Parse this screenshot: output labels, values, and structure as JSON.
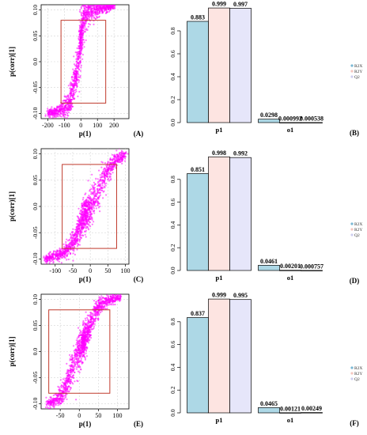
{
  "colors": {
    "r2x": "#add8e6",
    "r2y": "#fde4e1",
    "q2": "#e6e6fa",
    "point": "#ff00ff",
    "box": "#c0392b",
    "grid": "#d4d4d4"
  },
  "chart_data": [
    {
      "type": "scatter",
      "panel_label": "(A)",
      "xlabel": "p(1)",
      "ylabel": "p(corr)[1]",
      "xlim": [
        -240,
        290
      ],
      "ylim": [
        -0.11,
        0.11
      ],
      "xticks": [
        -200,
        -100,
        0,
        100,
        200
      ],
      "yticks": [
        -0.1,
        -0.05,
        0.0,
        0.05,
        0.1
      ],
      "xtick_labels": [
        "-200",
        "-100",
        "0",
        "100",
        "200"
      ],
      "ytick_labels": [
        "-0.10",
        "-0.05",
        "0.0",
        "0.05",
        "0.10"
      ],
      "grid": true,
      "box": {
        "x": [
          -120,
          150
        ],
        "y": [
          -0.08,
          0.08
        ]
      },
      "trend": [
        [
          -200,
          -0.1
        ],
        [
          -130,
          -0.095
        ],
        [
          -90,
          -0.087
        ],
        [
          -70,
          -0.08
        ],
        [
          -60,
          -0.07
        ],
        [
          -40,
          -0.04
        ],
        [
          -25,
          -0.02
        ],
        [
          -10,
          0.0
        ],
        [
          -5,
          0.03
        ],
        [
          5,
          0.065
        ],
        [
          10,
          0.08
        ],
        [
          20,
          0.092
        ],
        [
          60,
          0.1
        ],
        [
          100,
          0.103
        ],
        [
          200,
          0.108
        ]
      ]
    },
    {
      "type": "bar",
      "panel_label": "(B)",
      "categories": [
        "p1",
        "o1"
      ],
      "series": [
        {
          "name": "R2X",
          "values": [
            0.883,
            0.0298
          ]
        },
        {
          "name": "R2Y",
          "values": [
            0.999,
            0.000992
          ]
        },
        {
          "name": "Q2",
          "values": [
            0.997,
            0.000538
          ]
        }
      ],
      "value_labels": [
        [
          "0.883",
          "0.999",
          "0.997"
        ],
        [
          "0.0298",
          "0.000992",
          "0.000538"
        ]
      ],
      "ylim": [
        0,
        1.0
      ],
      "yticks": [
        0.0,
        0.2,
        0.4,
        0.6,
        0.8
      ],
      "ytick_labels": [
        "0.0",
        "0.2",
        "0.4",
        "0.6",
        "0.8"
      ],
      "legend": "right"
    },
    {
      "type": "scatter",
      "panel_label": "(C)",
      "xlabel": "p(1)",
      "ylabel": "p(corr)[1]",
      "xlim": [
        -140,
        110
      ],
      "ylim": [
        -0.11,
        0.11
      ],
      "xticks": [
        -100,
        -50,
        0,
        50,
        100
      ],
      "yticks": [
        -0.1,
        -0.05,
        0.0,
        0.05,
        0.1
      ],
      "xtick_labels": [
        "-100",
        "-50",
        "0",
        "50",
        "100"
      ],
      "ytick_labels": [
        "-0.10",
        "-0.05",
        "0.0",
        "0.05",
        "0.10"
      ],
      "grid": true,
      "box": {
        "x": [
          -80,
          75
        ],
        "y": [
          -0.08,
          0.08
        ]
      },
      "trend": [
        [
          -130,
          -0.1
        ],
        [
          -100,
          -0.095
        ],
        [
          -75,
          -0.088
        ],
        [
          -50,
          -0.07
        ],
        [
          -30,
          -0.04
        ],
        [
          -15,
          -0.015
        ],
        [
          0,
          0.0
        ],
        [
          15,
          0.015
        ],
        [
          30,
          0.04
        ],
        [
          50,
          0.07
        ],
        [
          75,
          0.088
        ],
        [
          100,
          0.1
        ]
      ]
    },
    {
      "type": "bar",
      "panel_label": "(D)",
      "categories": [
        "p1",
        "o1"
      ],
      "series": [
        {
          "name": "R2X",
          "values": [
            0.851,
            0.0461
          ]
        },
        {
          "name": "R2Y",
          "values": [
            0.998,
            0.00201
          ]
        },
        {
          "name": "Q2",
          "values": [
            0.992,
            0.000757
          ]
        }
      ],
      "value_labels": [
        [
          "0.851",
          "0.998",
          "0.992"
        ],
        [
          "0.0461",
          "0.00201",
          "0.000757"
        ]
      ],
      "ylim": [
        0,
        1.0
      ],
      "yticks": [
        0.0,
        0.2,
        0.4,
        0.6,
        0.8
      ],
      "ytick_labels": [
        "0.0",
        "0.2",
        "0.4",
        "0.6",
        "0.8"
      ],
      "legend": "right"
    },
    {
      "type": "scatter",
      "panel_label": "(E)",
      "xlabel": "p(1)",
      "ylabel": "p(corr)[1]",
      "xlim": [
        -100,
        130
      ],
      "ylim": [
        -0.11,
        0.11
      ],
      "xticks": [
        -50,
        0,
        50,
        100
      ],
      "yticks": [
        -0.1,
        -0.05,
        0.0,
        0.05,
        0.1
      ],
      "xtick_labels": [
        "-50",
        "0",
        "50",
        "100"
      ],
      "ytick_labels": [
        "-0.10",
        "-0.05",
        "0.0",
        "0.05",
        "0.10"
      ],
      "grid": true,
      "box": {
        "x": [
          -80,
          80
        ],
        "y": [
          -0.08,
          0.08
        ]
      },
      "trend": [
        [
          -85,
          -0.1
        ],
        [
          -70,
          -0.097
        ],
        [
          -55,
          -0.09
        ],
        [
          -40,
          -0.075
        ],
        [
          -25,
          -0.045
        ],
        [
          -12,
          -0.02
        ],
        [
          0,
          0.0
        ],
        [
          12,
          0.02
        ],
        [
          25,
          0.045
        ],
        [
          40,
          0.075
        ],
        [
          60,
          0.092
        ],
        [
          80,
          0.1
        ],
        [
          110,
          0.105
        ]
      ]
    },
    {
      "type": "bar",
      "panel_label": "(F)",
      "categories": [
        "p1",
        "o1"
      ],
      "series": [
        {
          "name": "R2X",
          "values": [
            0.837,
            0.0465
          ]
        },
        {
          "name": "R2Y",
          "values": [
            0.999,
            0.00121
          ]
        },
        {
          "name": "Q2",
          "values": [
            0.995,
            0.00249
          ]
        }
      ],
      "value_labels": [
        [
          "0.837",
          "0.999",
          "0.995"
        ],
        [
          "0.0465",
          "0.00121",
          "0.00249"
        ]
      ],
      "ylim": [
        0,
        1.0
      ],
      "yticks": [
        0.0,
        0.2,
        0.4,
        0.6,
        0.8
      ],
      "ytick_labels": [
        "0.0",
        "0.2",
        "0.4",
        "0.6",
        "0.8"
      ],
      "legend": "right"
    }
  ]
}
